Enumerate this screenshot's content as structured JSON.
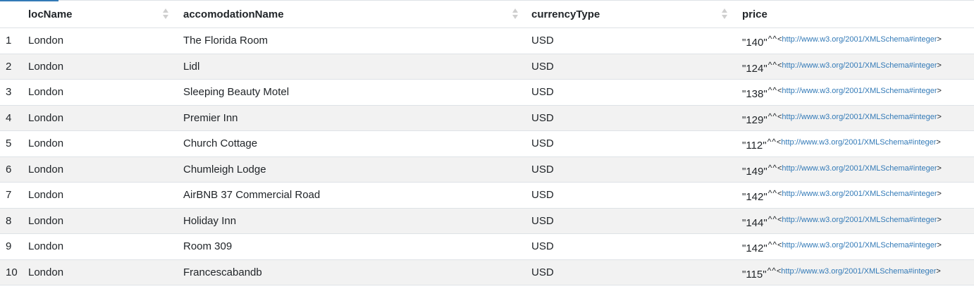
{
  "columns": [
    {
      "label": "locName"
    },
    {
      "label": "accomodationName"
    },
    {
      "label": "currencyType"
    },
    {
      "label": "price"
    }
  ],
  "datatype_uri": "http://www.w3.org/2001/XMLSchema#integer",
  "caret_text": "^^",
  "lt": "<",
  "gt": ">",
  "rows": [
    {
      "num": "1",
      "locName": "London",
      "accomodationName": "The Florida Room",
      "currencyType": "USD",
      "price": "\"140\""
    },
    {
      "num": "2",
      "locName": "London",
      "accomodationName": "Lidl",
      "currencyType": "USD",
      "price": "\"124\""
    },
    {
      "num": "3",
      "locName": "London",
      "accomodationName": "Sleeping Beauty Motel",
      "currencyType": "USD",
      "price": "\"138\""
    },
    {
      "num": "4",
      "locName": "London",
      "accomodationName": "Premier Inn",
      "currencyType": "USD",
      "price": "\"129\""
    },
    {
      "num": "5",
      "locName": "London",
      "accomodationName": "Church Cottage",
      "currencyType": "USD",
      "price": "\"112\""
    },
    {
      "num": "6",
      "locName": "London",
      "accomodationName": "Chumleigh Lodge",
      "currencyType": "USD",
      "price": "\"149\""
    },
    {
      "num": "7",
      "locName": "London",
      "accomodationName": "AirBNB 37 Commercial Road",
      "currencyType": "USD",
      "price": "\"142\""
    },
    {
      "num": "8",
      "locName": "London",
      "accomodationName": "Holiday Inn",
      "currencyType": "USD",
      "price": "\"144\""
    },
    {
      "num": "9",
      "locName": "London",
      "accomodationName": "Room 309",
      "currencyType": "USD",
      "price": "\"142\""
    },
    {
      "num": "10",
      "locName": "London",
      "accomodationName": "Francescabandb",
      "currencyType": "USD",
      "price": "\"115\""
    }
  ]
}
